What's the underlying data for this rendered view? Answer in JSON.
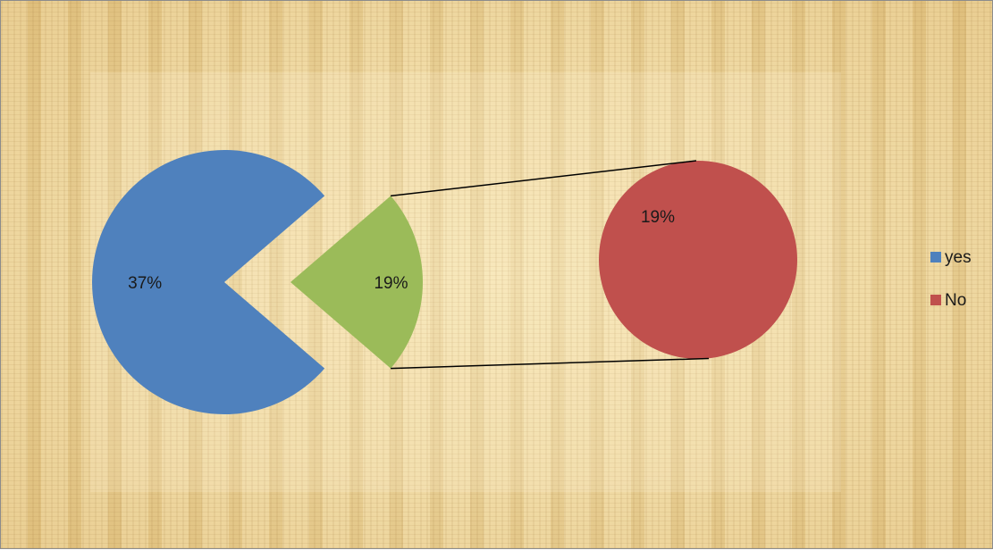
{
  "chart_data": {
    "type": "pie",
    "subtype": "pie-of-pie",
    "series": [
      {
        "name": "",
        "slices": [
          {
            "label": "yes",
            "value": 37,
            "display": "37%",
            "color": "#4f81bd",
            "pie": "main"
          },
          {
            "label": "",
            "value": 19,
            "display": "19%",
            "color": "#9bbb59",
            "pie": "main"
          },
          {
            "label": "No",
            "value": 19,
            "display": "19%",
            "color": "#c0504d",
            "pie": "secondary"
          }
        ]
      }
    ],
    "legend": {
      "placement": "right",
      "entries": [
        {
          "label": "yes",
          "color": "#4f81bd"
        },
        {
          "label": "No",
          "color": "#c0504d"
        }
      ]
    }
  },
  "colors": {
    "background": "#ecd49a",
    "connector": "#000000"
  }
}
